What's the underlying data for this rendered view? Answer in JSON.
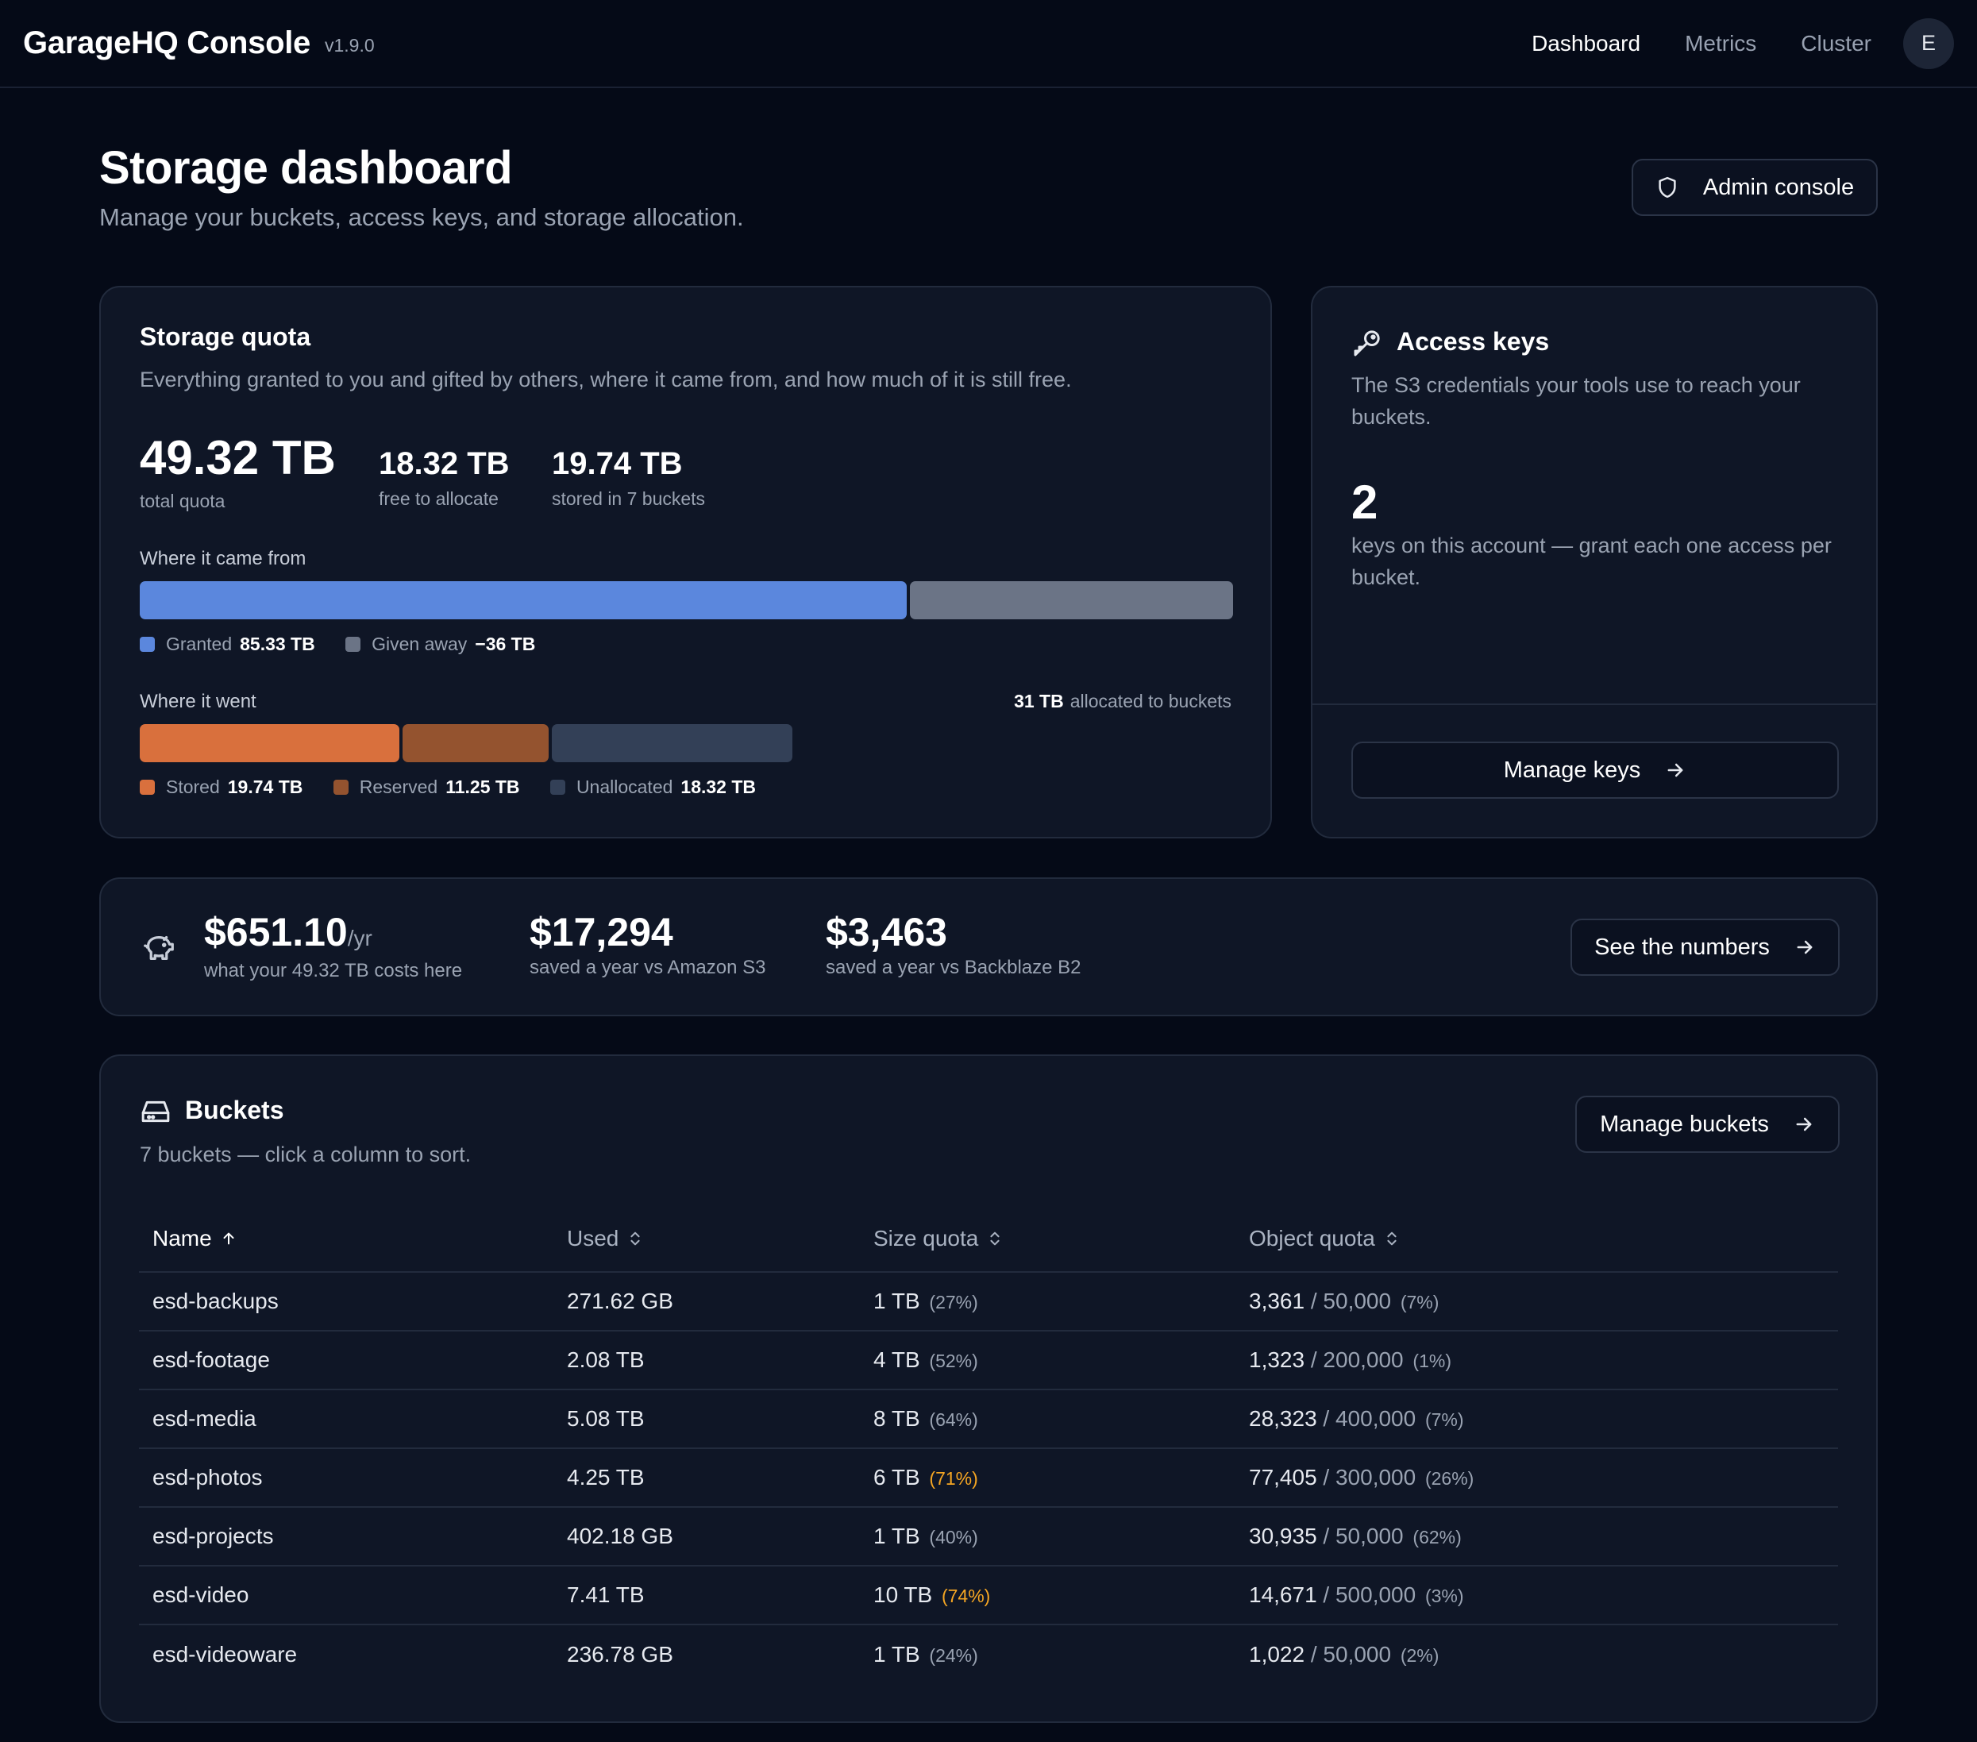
{
  "app": {
    "title": "GarageHQ Console",
    "version": "v1.9.0"
  },
  "nav": {
    "items": [
      {
        "label": "Dashboard",
        "active": true
      },
      {
        "label": "Metrics",
        "active": false
      },
      {
        "label": "Cluster",
        "active": false
      }
    ],
    "avatar_initial": "E"
  },
  "page": {
    "title": "Storage dashboard",
    "subtitle": "Manage your buckets, access keys, and storage allocation.",
    "admin_button": "Admin console"
  },
  "quota": {
    "title": "Storage quota",
    "description": "Everything granted to you and gifted by others, where it came from, and how much of it is still free.",
    "total_value": "49.32 TB",
    "total_label": "total quota",
    "free_value": "18.32 TB",
    "free_label": "free to allocate",
    "stored_value": "19.74 TB",
    "stored_label": "stored in 7 buckets",
    "source_title": "Where it came from",
    "source_legend": [
      {
        "label": "Granted",
        "value": "85.33 TB",
        "color": "#5b87dd",
        "tb": 85.33
      },
      {
        "label": "Given away",
        "value": "−36 TB",
        "color": "#6b7486",
        "tb": 36
      }
    ],
    "usage_title": "Where it went",
    "allocated_value": "31 TB",
    "allocated_label": "allocated to buckets",
    "usage_legend": [
      {
        "label": "Stored",
        "value": "19.74 TB",
        "color": "#d9703d",
        "tb": 19.74
      },
      {
        "label": "Reserved",
        "value": "11.25 TB",
        "color": "#94532f",
        "tb": 11.25
      },
      {
        "label": "Unallocated",
        "value": "18.32 TB",
        "color": "#334057",
        "tb": 18.32
      }
    ]
  },
  "keys": {
    "title": "Access keys",
    "description": "The S3 credentials your tools use to reach your buckets.",
    "count": "2",
    "count_label": "keys on this account — grant each one access per bucket.",
    "manage_button": "Manage keys"
  },
  "savings": {
    "cost_value": "$651.10",
    "cost_unit": "/yr",
    "cost_label": "what your 49.32 TB costs here",
    "s3_value": "$17,294",
    "s3_label": "saved a year vs Amazon S3",
    "b2_value": "$3,463",
    "b2_label": "saved a year vs Backblaze B2",
    "button": "See the numbers"
  },
  "buckets": {
    "title": "Buckets",
    "subtitle": "7 buckets — click a column to sort.",
    "manage_button": "Manage buckets",
    "columns": [
      "Name",
      "Used",
      "Size quota",
      "Object quota"
    ],
    "rows": [
      {
        "name": "esd-backups",
        "used": "271.62 GB",
        "size_quota": "1 TB",
        "size_pct": "(27%)",
        "size_warn": false,
        "objects": "3,361",
        "object_quota": "/ 50,000",
        "object_pct": "(7%)"
      },
      {
        "name": "esd-footage",
        "used": "2.08 TB",
        "size_quota": "4 TB",
        "size_pct": "(52%)",
        "size_warn": false,
        "objects": "1,323",
        "object_quota": "/ 200,000",
        "object_pct": "(1%)"
      },
      {
        "name": "esd-media",
        "used": "5.08 TB",
        "size_quota": "8 TB",
        "size_pct": "(64%)",
        "size_warn": false,
        "objects": "28,323",
        "object_quota": "/ 400,000",
        "object_pct": "(7%)"
      },
      {
        "name": "esd-photos",
        "used": "4.25 TB",
        "size_quota": "6 TB",
        "size_pct": "(71%)",
        "size_warn": true,
        "objects": "77,405",
        "object_quota": "/ 300,000",
        "object_pct": "(26%)"
      },
      {
        "name": "esd-projects",
        "used": "402.18 GB",
        "size_quota": "1 TB",
        "size_pct": "(40%)",
        "size_warn": false,
        "objects": "30,935",
        "object_quota": "/ 50,000",
        "object_pct": "(62%)"
      },
      {
        "name": "esd-video",
        "used": "7.41 TB",
        "size_quota": "10 TB",
        "size_pct": "(74%)",
        "size_warn": true,
        "objects": "14,671",
        "object_quota": "/ 500,000",
        "object_pct": "(3%)"
      },
      {
        "name": "esd-videoware",
        "used": "236.78 GB",
        "size_quota": "1 TB",
        "size_pct": "(24%)",
        "size_warn": false,
        "objects": "1,022",
        "object_quota": "/ 50,000",
        "object_pct": "(2%)"
      }
    ]
  },
  "icons": {
    "shield": "shield-icon",
    "key": "key-icon",
    "arrow": "arrow-right-icon",
    "piggy": "piggy-bank-icon",
    "drive": "hard-drive-icon",
    "sort_up": "arrow-up-icon",
    "sort_both": "chevron-up-down-icon"
  }
}
